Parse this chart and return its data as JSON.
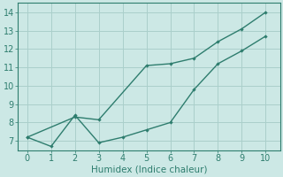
{
  "x_zigzag": [
    0,
    1,
    2,
    3,
    4,
    5,
    6,
    7,
    8,
    9,
    10
  ],
  "y_zigzag": [
    7.2,
    6.7,
    8.4,
    6.9,
    7.2,
    7.6,
    8.0,
    9.8,
    11.2,
    11.9,
    12.7
  ],
  "x_upper": [
    0,
    2,
    3,
    5,
    6,
    7,
    8,
    9,
    10
  ],
  "y_upper": [
    7.2,
    8.3,
    8.15,
    11.1,
    11.2,
    11.5,
    12.4,
    13.1,
    14.0
  ],
  "color": "#2e7d6e",
  "bg_color": "#cce8e5",
  "grid_color": "#aacfcb",
  "xlabel": "Humidex (Indice chaleur)",
  "ylim": [
    6.5,
    14.5
  ],
  "xlim": [
    -0.4,
    10.6
  ],
  "yticks": [
    7,
    8,
    9,
    10,
    11,
    12,
    13,
    14
  ],
  "xticks": [
    0,
    1,
    2,
    3,
    4,
    5,
    6,
    7,
    8,
    9,
    10
  ],
  "tick_fontsize": 7,
  "xlabel_fontsize": 7.5
}
